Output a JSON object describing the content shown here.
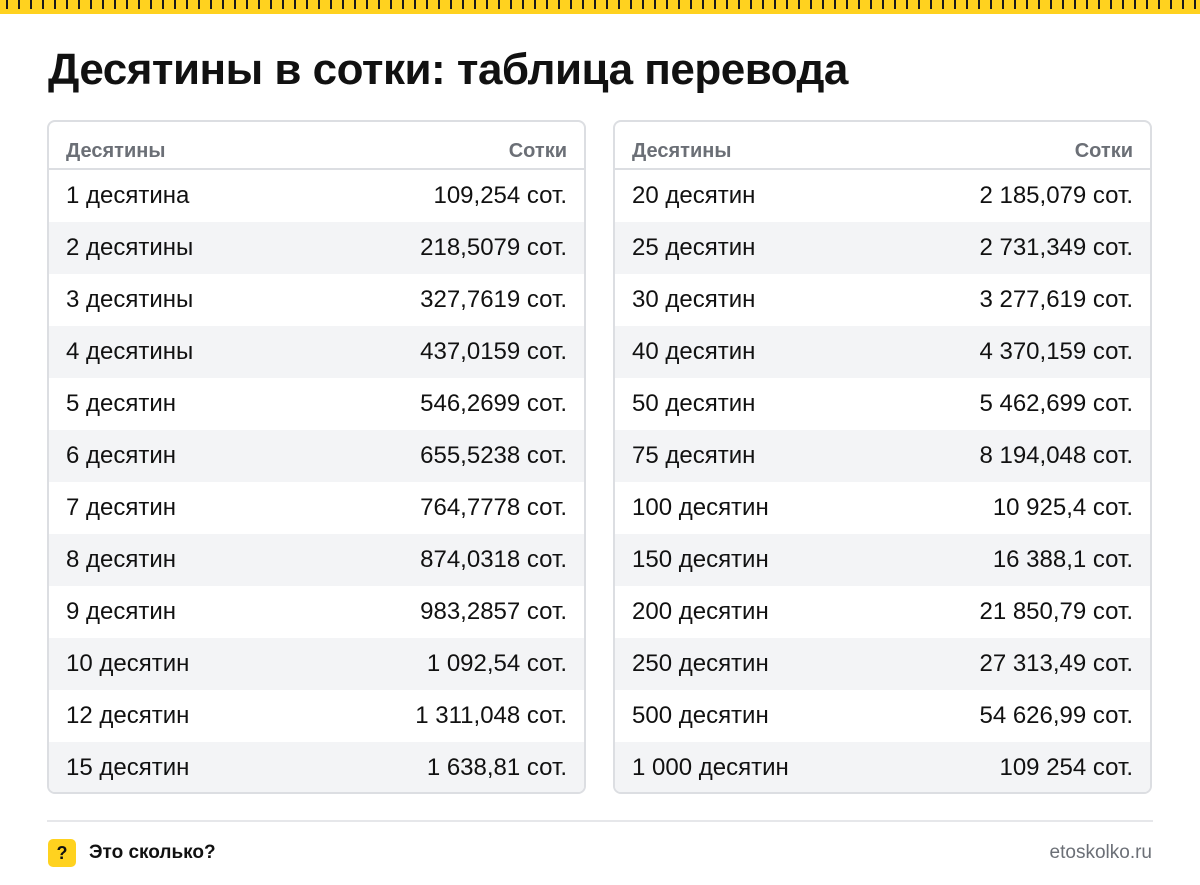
{
  "title": "Десятины в сотки: таблица перевода",
  "tables": [
    {
      "headers": [
        "Десятины",
        "Сотки"
      ],
      "rows": [
        [
          "1 десятина",
          "109,254 сот."
        ],
        [
          "2 десятины",
          "218,5079 сот."
        ],
        [
          "3 десятины",
          "327,7619 сот."
        ],
        [
          "4 десятины",
          "437,0159 сот."
        ],
        [
          "5 десятин",
          "546,2699 сот."
        ],
        [
          "6 десятин",
          "655,5238 сот."
        ],
        [
          "7 десятин",
          "764,7778 сот."
        ],
        [
          "8 десятин",
          "874,0318 сот."
        ],
        [
          "9 десятин",
          "983,2857 сот."
        ],
        [
          "10 десятин",
          "1 092,54 сот."
        ],
        [
          "12 десятин",
          "1 311,048 сот."
        ],
        [
          "15 десятин",
          "1 638,81 сот."
        ]
      ]
    },
    {
      "headers": [
        "Десятины",
        "Сотки"
      ],
      "rows": [
        [
          "20 десятин",
          "2 185,079 сот."
        ],
        [
          "25 десятин",
          "2 731,349 сот."
        ],
        [
          "30 десятин",
          "3 277,619 сот."
        ],
        [
          "40 десятин",
          "4 370,159 сот."
        ],
        [
          "50 десятин",
          "5 462,699 сот."
        ],
        [
          "75 десятин",
          "8 194,048 сот."
        ],
        [
          "100 десятин",
          "10 925,4 сот."
        ],
        [
          "150 десятин",
          "16 388,1 сот."
        ],
        [
          "200 десятин",
          "21 850,79 сот."
        ],
        [
          "250 десятин",
          "27 313,49 сот."
        ],
        [
          "500 десятин",
          "54 626,99 сот."
        ],
        [
          "1 000 десятин",
          "109 254 сот."
        ]
      ]
    }
  ],
  "footer": {
    "logo_symbol": "?",
    "brand": "Это сколько?",
    "site": "etoskolko.ru"
  },
  "colors": {
    "accent": "#ffd21f",
    "header_text": "#6b6f76",
    "stripe": "#f3f4f6",
    "border": "#dcdee2"
  }
}
